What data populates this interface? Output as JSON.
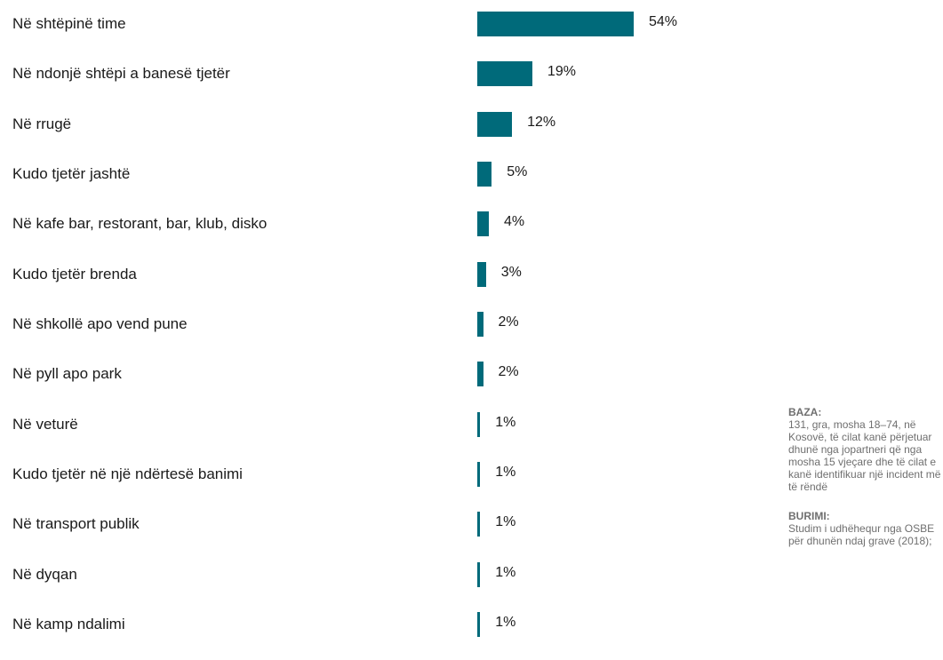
{
  "chart_data": {
    "type": "bar",
    "orientation": "horizontal",
    "categories": [
      "Në shtëpinë time",
      "Në ndonjë shtëpi a banesë tjetër",
      "Në rrugë",
      "Kudo tjetër jashtë",
      "Në kafe bar, restorant, bar, klub, disko",
      "Kudo tjetër brenda",
      "Në shkollë apo vend pune",
      "Në pyll apo park",
      "Në veturë",
      "Kudo tjetër në një ndërtesë banimi",
      "Në transport publik",
      "Në dyqan",
      "Në kamp ndalimi"
    ],
    "values": [
      54,
      19,
      12,
      5,
      4,
      3,
      2,
      2,
      1,
      1,
      1,
      1,
      1
    ],
    "value_labels": [
      "54%",
      "19%",
      "12%",
      "5%",
      "4%",
      "3%",
      "2%",
      "2%",
      "1%",
      "1%",
      "1%",
      "1%",
      "1%"
    ],
    "unit": "%",
    "bar_color": "#006a7a",
    "xlim": [
      0,
      54
    ],
    "grid": false,
    "legend": "none"
  },
  "notes": {
    "base_title": "BAZA:",
    "base_text": "131, gra, mosha 18–74, në Kosovë, të cilat kanë përjetuar dhunë nga jopartneri që nga mosha 15 vjeçare dhe të cilat e kanë identifikuar një incident më të rëndë",
    "source_title": "BURIMI:",
    "source_text": "Studim i udhëhequr nga OSBE për dhunën ndaj grave (2018);"
  }
}
